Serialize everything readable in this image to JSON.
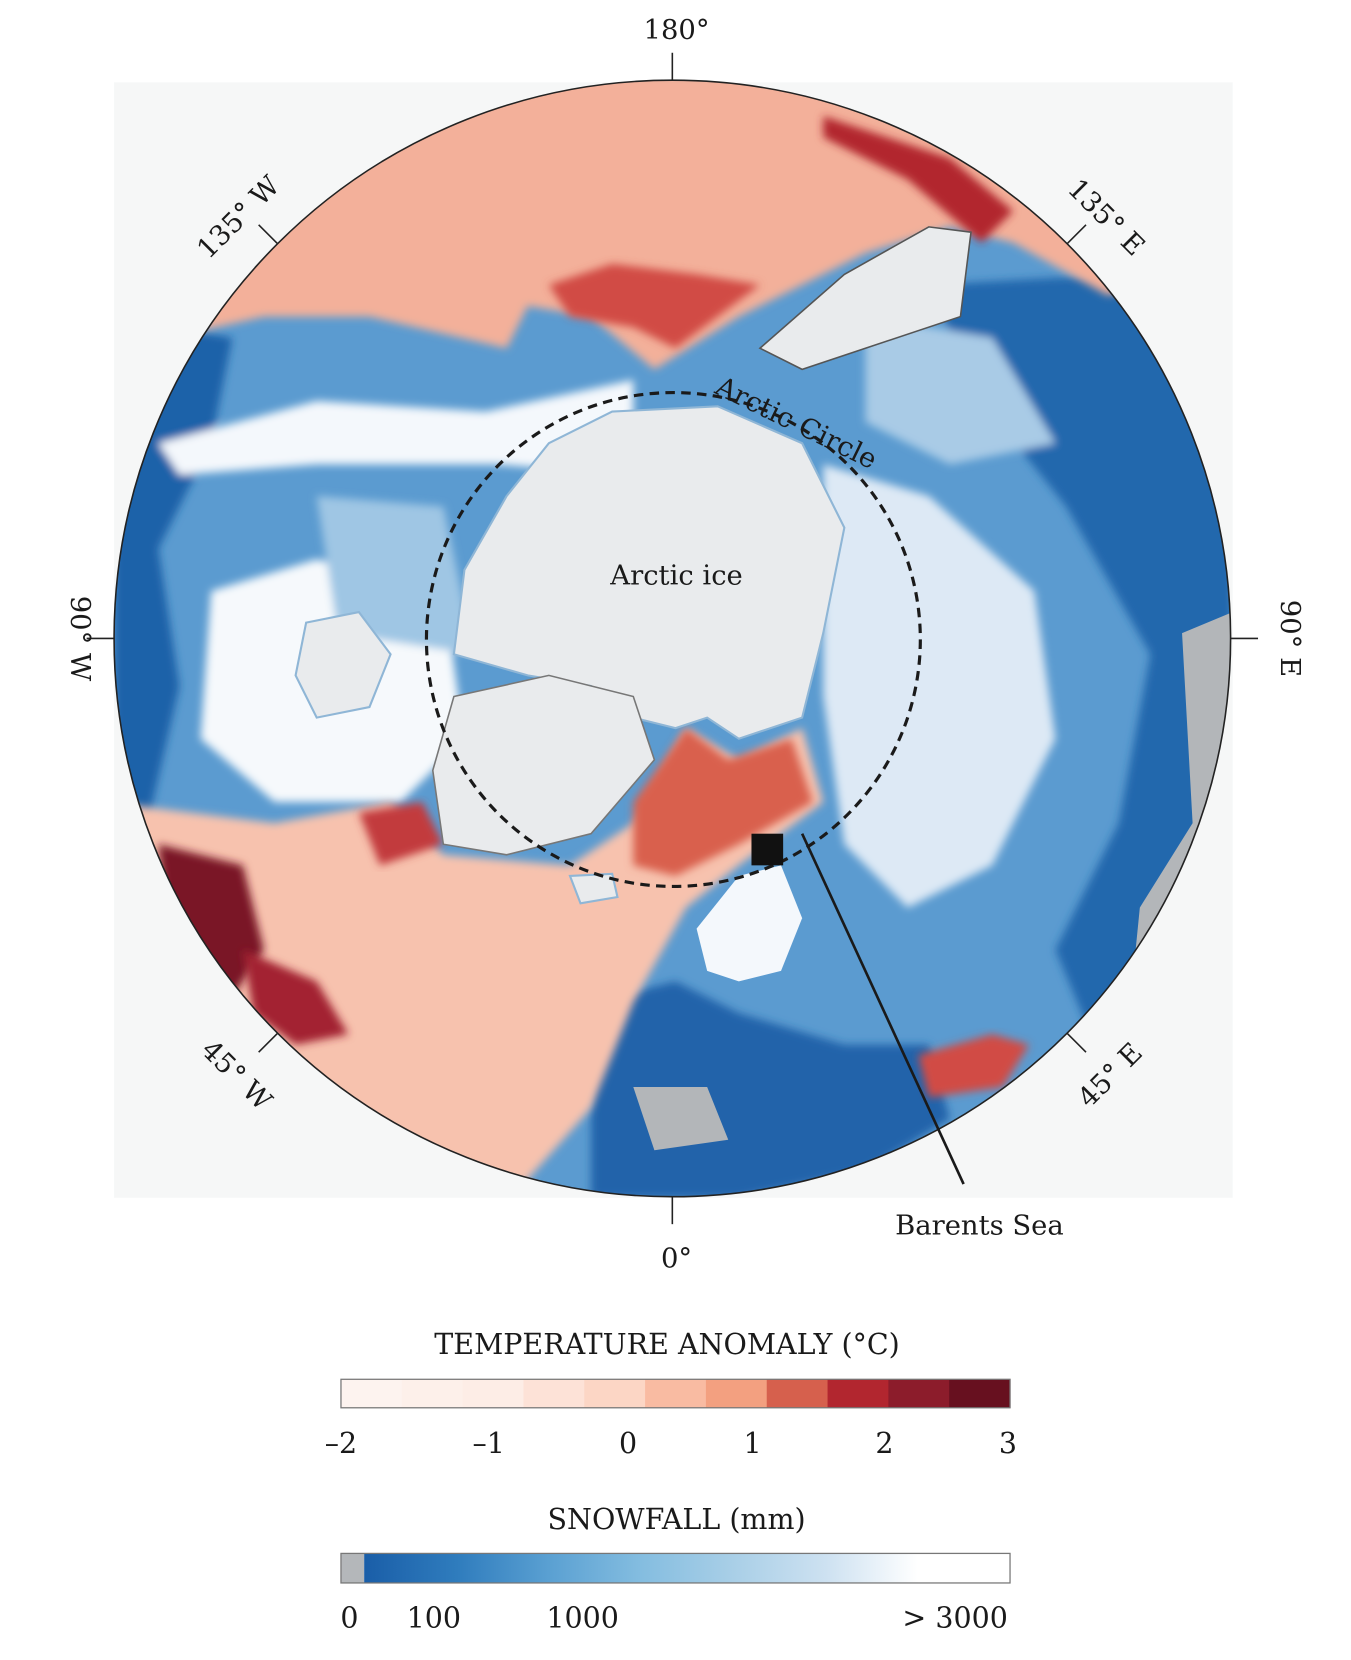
{
  "map": {
    "longitude_labels": {
      "top": "180°",
      "bottom": "0°",
      "left": "90° W",
      "right": "90° E",
      "top_left": "135° W",
      "top_right": "135° E",
      "bottom_left": "45° W",
      "bottom_right": "45° E"
    },
    "annotations": {
      "arctic_circle": "Arctic Circle",
      "arctic_ice": "Arctic ice",
      "barents_sea": "Barents Sea"
    },
    "colors": {
      "background": "#f6f7f7",
      "ice": "#e9ebed",
      "land_gray": "#b3b6b9"
    }
  },
  "legends": {
    "temperature": {
      "title": "TEMPERATURE ANOMALY (°C)",
      "ticks": [
        "–2",
        "–1",
        "0",
        "1",
        "2",
        "3"
      ],
      "colors": [
        "#fdf3ef",
        "#fdf0ea",
        "#fdede6",
        "#fde2d7",
        "#fcd6c5",
        "#f9bba2",
        "#f3a080",
        "#d6604d",
        "#b2262f",
        "#8c1c2b",
        "#67101f"
      ]
    },
    "snowfall": {
      "title": "SNOWFALL (mm)",
      "ticks": [
        "0",
        "100",
        "1000",
        "> 3000"
      ],
      "zero_color": "#b4b7ba",
      "gradient": [
        "#1a5ea8",
        "#2f7cbd",
        "#5aa0d2",
        "#84bde0",
        "#a9cfe7",
        "#cde1f1",
        "#ffffff",
        "#ffffff"
      ]
    }
  }
}
